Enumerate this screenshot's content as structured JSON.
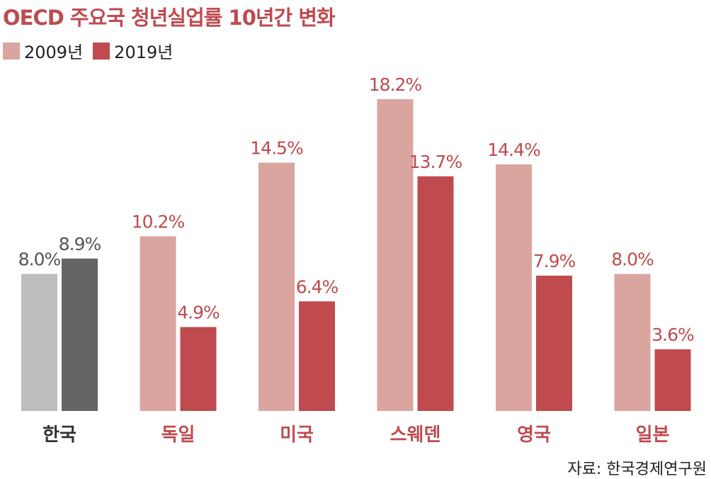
{
  "title": "OECD 주요국 청년실업률 10년간 변화",
  "source": "자료: 한국경제연구원",
  "colors": {
    "accent": "#be4b4f",
    "series_2009": "#dba59f",
    "series_2019": "#bf4b4f",
    "korea_2009": "#bdbdbd",
    "korea_2019": "#666464",
    "korea_label_2009": "#555555",
    "korea_label_2019": "#555555",
    "category_korea": "#333333"
  },
  "chart_data": {
    "type": "bar",
    "title": "OECD 주요국 청년실업률 10년간 변화",
    "categories": [
      "한국",
      "독일",
      "미국",
      "스웨덴",
      "영국",
      "일본"
    ],
    "series": [
      {
        "name": "2009년",
        "values": [
          8.0,
          10.2,
          14.5,
          18.2,
          14.4,
          8.0
        ]
      },
      {
        "name": "2019년",
        "values": [
          8.9,
          4.9,
          6.4,
          13.7,
          7.9,
          3.6
        ]
      }
    ],
    "data_labels": [
      [
        "8.0%",
        "10.2%",
        "14.5%",
        "18.2%",
        "14.4%",
        "8.0%"
      ],
      [
        "8.9%",
        "4.9%",
        "6.4%",
        "13.7%",
        "7.9%",
        "3.6%"
      ]
    ],
    "ylim": [
      0,
      18.2
    ],
    "grid": false,
    "legend": "top-left"
  }
}
